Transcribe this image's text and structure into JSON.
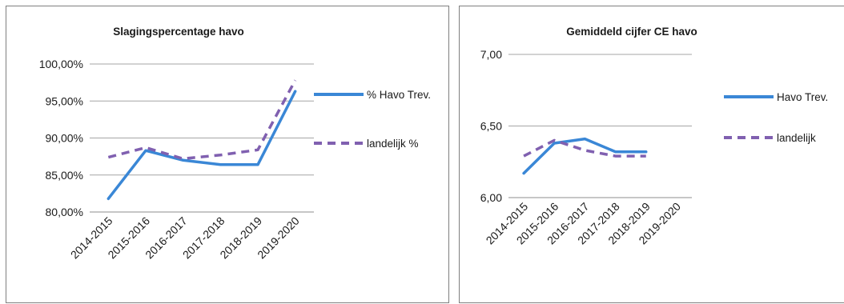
{
  "chart_data": [
    {
      "type": "line",
      "title": "Slagingspercentage havo",
      "categories": [
        "2014-2015",
        "2015-2016",
        "2016-2017",
        "2017-2018",
        "2018-2019",
        "2019-2020"
      ],
      "series": [
        {
          "name": "% Havo Trev.",
          "values": [
            81.8,
            88.3,
            87.0,
            86.4,
            86.4,
            96.3
          ],
          "color": "#3a87d6",
          "dash": "solid"
        },
        {
          "name": "landelijk %",
          "values": [
            87.4,
            88.7,
            87.2,
            87.7,
            88.4,
            97.8
          ],
          "color": "#8060b0",
          "dash": "dashed"
        }
      ],
      "ylim": [
        80,
        100
      ],
      "yticks": [
        "80,00%",
        "85,00%",
        "90,00%",
        "95,00%",
        "100,00%"
      ],
      "grid": true,
      "legend": "right"
    },
    {
      "type": "line",
      "title": "Gemiddeld cijfer CE havo",
      "categories": [
        "2014-2015",
        "2015-2016",
        "2016-2017",
        "2017-2018",
        "2018-2019",
        "2019-2020"
      ],
      "series": [
        {
          "name": "Havo Trev.",
          "values": [
            6.17,
            6.38,
            6.41,
            6.32,
            6.32,
            null
          ],
          "color": "#3a87d6",
          "dash": "solid"
        },
        {
          "name": "landelijk",
          "values": [
            6.29,
            6.4,
            6.33,
            6.29,
            6.29,
            null
          ],
          "color": "#8060b0",
          "dash": "dashed"
        }
      ],
      "ylim": [
        6.0,
        7.0
      ],
      "yticks": [
        "6,00",
        "6,50",
        "7,00"
      ],
      "grid": true,
      "legend": "right"
    }
  ]
}
